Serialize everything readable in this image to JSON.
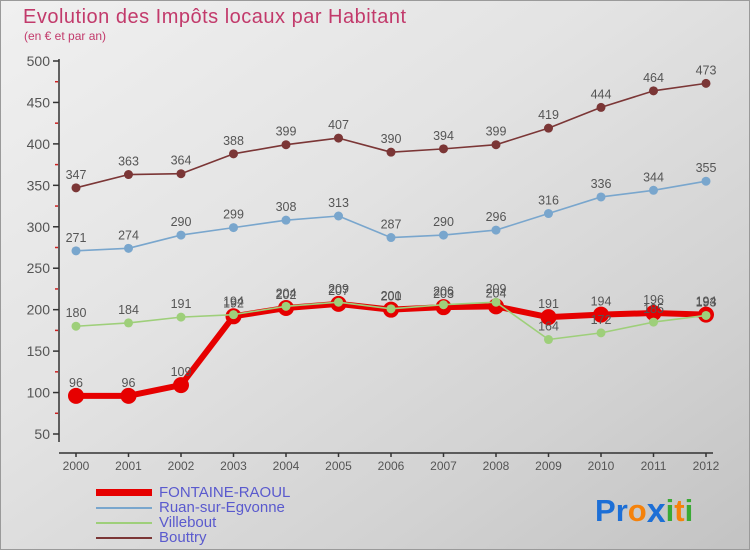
{
  "title": "Evolution des Impôts locaux par Habitant",
  "subtitle": "(en € et par an)",
  "chart_data": {
    "type": "line",
    "x": [
      2000,
      2001,
      2002,
      2003,
      2004,
      2005,
      2006,
      2007,
      2008,
      2009,
      2010,
      2011,
      2012
    ],
    "series": [
      {
        "name": "FONTAINE-RAOUL",
        "color": "#e60000",
        "line_width": 6,
        "dot_radius": 8,
        "values": [
          96,
          96,
          109,
          192,
          202,
          207,
          200,
          203,
          204,
          191,
          194,
          196,
          194
        ]
      },
      {
        "name": "Ruan-sur-Egvonne",
        "color": "#79a6cd",
        "line_width": 1.6,
        "dot_radius": 4.5,
        "values": [
          271,
          274,
          290,
          299,
          308,
          313,
          287,
          290,
          296,
          316,
          336,
          344,
          355
        ]
      },
      {
        "name": "Villebout",
        "color": "#9ecf7a",
        "line_width": 1.6,
        "dot_radius": 4.5,
        "values": [
          180,
          184,
          191,
          194,
          204,
          209,
          201,
          206,
          209,
          164,
          172,
          185,
          193
        ]
      },
      {
        "name": "Bouttry",
        "color": "#7b3636",
        "line_width": 1.6,
        "dot_radius": 4.5,
        "values": [
          347,
          363,
          364,
          388,
          399,
          407,
          390,
          394,
          399,
          419,
          444,
          464,
          473
        ]
      }
    ],
    "ylim": [
      50,
      500
    ],
    "ytick_major_step": 50,
    "ytick_minor_step": 25,
    "ytick_labels": [
      "50",
      "100",
      "150",
      "200",
      "250",
      "300",
      "350",
      "400",
      "450",
      "500"
    ],
    "grid": false,
    "legend_position": "bottom-left",
    "value_labels_shown": true
  },
  "axis_style": {
    "axis_color": "#333333",
    "tick_label_color": "#555555",
    "minor_tick_color": "#cc2222",
    "value_label_color": "#555555"
  },
  "legend": {
    "items": [
      {
        "label": "FONTAINE-RAOUL",
        "swatch_color": "#e60000",
        "swatch_height": 7
      },
      {
        "label": "Ruan-sur-Egvonne",
        "swatch_color": "#79a6cd",
        "swatch_height": 2
      },
      {
        "label": "Villebout",
        "swatch_color": "#9ecf7a",
        "swatch_height": 2
      },
      {
        "label": "Bouttry",
        "swatch_color": "#7b3636",
        "swatch_height": 2
      }
    ],
    "text_color": "#5a5ace"
  },
  "logo": {
    "name": "Proxiti",
    "letters": [
      {
        "ch": "P",
        "color": "#1d6fd6"
      },
      {
        "ch": "r",
        "color": "#1d6fd6"
      },
      {
        "ch": "o",
        "color": "#f5820b"
      },
      {
        "ch": "x",
        "color": "#1d6fd6"
      },
      {
        "ch": "i",
        "color": "#3aaa35"
      },
      {
        "ch": "t",
        "color": "#f5820b"
      },
      {
        "ch": "i",
        "color": "#3aaa35"
      }
    ]
  },
  "colors": {
    "title": "#c23a6b",
    "background_top": "#f0f0f0",
    "background_bottom": "#c3c3c3"
  }
}
